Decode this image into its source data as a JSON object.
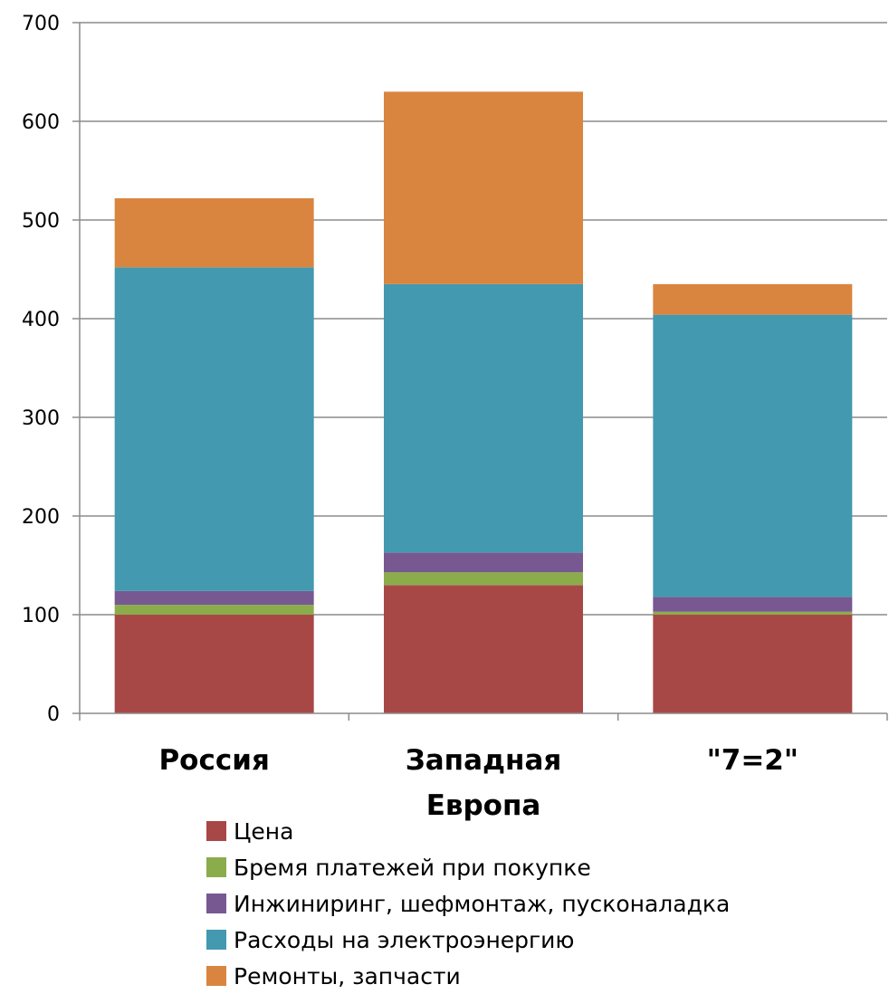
{
  "chart_data": {
    "type": "bar",
    "stacked": true,
    "title": "",
    "xlabel": "",
    "ylabel": "",
    "ylim": [
      0,
      700
    ],
    "yticks": [
      0,
      100,
      200,
      300,
      400,
      500,
      600,
      700
    ],
    "grid": true,
    "legend_position": "bottom",
    "categories": [
      "Россия",
      "Западная Европа",
      "\"7=2\""
    ],
    "series": [
      {
        "name": "Цена",
        "color": "#a84846",
        "values": [
          100,
          130,
          100
        ]
      },
      {
        "name": "Бремя платежей при покупке",
        "color": "#8bac4b",
        "values": [
          10,
          13,
          3
        ]
      },
      {
        "name": "Инжиниринг, шефмонтаж, пусконаладка",
        "color": "#775891",
        "values": [
          14,
          20,
          15
        ]
      },
      {
        "name": "Расходы на электроэнергию",
        "color": "#4299b0",
        "values": [
          328,
          272,
          286
        ]
      },
      {
        "name": "Ремонты, запчасти",
        "color": "#da853f",
        "values": [
          70,
          195,
          31
        ]
      }
    ]
  }
}
